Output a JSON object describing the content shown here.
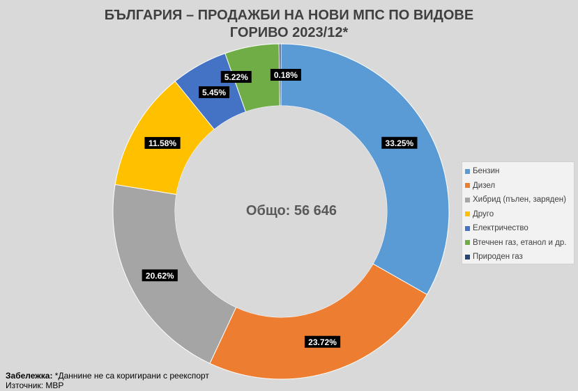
{
  "chart_data": {
    "type": "donut",
    "title_lines": [
      "БЪЛГАРИЯ – ПРОДАЖБИ НА НОВИ МПС ПО ВИДОВЕ",
      "ГОРИВО 2023/12*"
    ],
    "center_label": "Общо: 56 646",
    "slices": [
      {
        "name": "Бензин",
        "value": 33.25,
        "label": "33.25%",
        "color": "#5b9bd5"
      },
      {
        "name": "Дизел",
        "value": 23.72,
        "label": "23.72%",
        "color": "#ed7d31"
      },
      {
        "name": "Хибрид (пълен, заряден)",
        "value": 20.62,
        "label": "20.62%",
        "color": "#a5a5a5"
      },
      {
        "name": "Друго",
        "value": 11.58,
        "label": "11.58%",
        "color": "#ffc000"
      },
      {
        "name": "Електричество",
        "value": 5.45,
        "label": "5.45%",
        "color": "#4472c4"
      },
      {
        "name": "Втечнен газ, етанол и др.",
        "value": 5.22,
        "label": "5.22%",
        "color": "#70ad47"
      },
      {
        "name": "Природен газ",
        "value": 0.18,
        "label": "0.18%",
        "color": "#264478"
      }
    ],
    "legend_position": "right"
  },
  "footnote": {
    "note_label": "Забележка:",
    "note_text": " *Даннине не са коригирани с реекспорт",
    "source": "Източник: МВР"
  }
}
